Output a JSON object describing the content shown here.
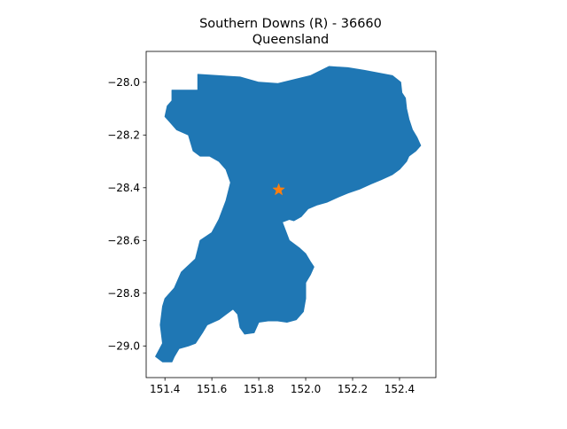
{
  "chart_data": {
    "type": "map",
    "title": "Southern Downs (R) - 36660",
    "subtitle": "Queensland",
    "xlim": [
      151.32,
      152.555
    ],
    "ylim": [
      -29.12,
      -27.883
    ],
    "xticks": [
      151.4,
      151.6,
      151.8,
      152.0,
      152.2,
      152.4
    ],
    "yticks": [
      -28.0,
      -28.2,
      -28.4,
      -28.6,
      -28.8,
      -29.0
    ],
    "xtick_labels": [
      "151.4",
      "151.6",
      "151.8",
      "152.0",
      "152.2",
      "152.4"
    ],
    "ytick_labels": [
      "−28.0",
      "−28.2",
      "−28.4",
      "−28.6",
      "−28.8",
      "−29.0"
    ],
    "region_color": "#1f77b4",
    "marker_color": "#ff7f0e",
    "marker": {
      "lon": 151.885,
      "lat": -28.408,
      "symbol": "star"
    },
    "region_boundary": [
      [
        151.54,
        -27.97
      ],
      [
        151.72,
        -27.98
      ],
      [
        151.8,
        -28.0
      ],
      [
        151.88,
        -28.005
      ],
      [
        151.95,
        -27.99
      ],
      [
        152.02,
        -27.975
      ],
      [
        152.1,
        -27.94
      ],
      [
        152.18,
        -27.945
      ],
      [
        152.25,
        -27.955
      ],
      [
        152.31,
        -27.965
      ],
      [
        152.37,
        -27.975
      ],
      [
        152.405,
        -28.0
      ],
      [
        152.41,
        -28.04
      ],
      [
        152.425,
        -28.06
      ],
      [
        152.43,
        -28.1
      ],
      [
        152.44,
        -28.14
      ],
      [
        152.455,
        -28.18
      ],
      [
        152.475,
        -28.21
      ],
      [
        152.49,
        -28.24
      ],
      [
        152.47,
        -28.26
      ],
      [
        152.44,
        -28.28
      ],
      [
        152.43,
        -28.3
      ],
      [
        152.4,
        -28.33
      ],
      [
        152.37,
        -28.35
      ],
      [
        152.32,
        -28.37
      ],
      [
        152.28,
        -28.385
      ],
      [
        152.23,
        -28.405
      ],
      [
        152.18,
        -28.42
      ],
      [
        152.14,
        -28.435
      ],
      [
        152.09,
        -28.455
      ],
      [
        152.05,
        -28.465
      ],
      [
        152.01,
        -28.48
      ],
      [
        151.98,
        -28.51
      ],
      [
        151.95,
        -28.525
      ],
      [
        151.93,
        -28.52
      ],
      [
        151.9,
        -28.53
      ],
      [
        151.93,
        -28.6
      ],
      [
        151.975,
        -28.63
      ],
      [
        152.0,
        -28.65
      ],
      [
        152.02,
        -28.68
      ],
      [
        152.035,
        -28.7
      ],
      [
        152.02,
        -28.73
      ],
      [
        152.0,
        -28.76
      ],
      [
        152.0,
        -28.82
      ],
      [
        151.99,
        -28.87
      ],
      [
        151.96,
        -28.9
      ],
      [
        151.92,
        -28.91
      ],
      [
        151.88,
        -28.905
      ],
      [
        151.84,
        -28.905
      ],
      [
        151.8,
        -28.91
      ],
      [
        151.78,
        -28.95
      ],
      [
        151.74,
        -28.955
      ],
      [
        151.72,
        -28.93
      ],
      [
        151.71,
        -28.88
      ],
      [
        151.69,
        -28.86
      ],
      [
        151.63,
        -28.9
      ],
      [
        151.58,
        -28.92
      ],
      [
        151.56,
        -28.95
      ],
      [
        151.53,
        -28.99
      ],
      [
        151.5,
        -29.0
      ],
      [
        151.46,
        -29.01
      ],
      [
        151.44,
        -29.04
      ],
      [
        151.43,
        -29.06
      ],
      [
        151.39,
        -29.06
      ],
      [
        151.36,
        -29.04
      ],
      [
        151.39,
        -28.99
      ],
      [
        151.38,
        -28.92
      ],
      [
        151.39,
        -28.85
      ],
      [
        151.4,
        -28.82
      ],
      [
        151.44,
        -28.78
      ],
      [
        151.47,
        -28.72
      ],
      [
        151.53,
        -28.67
      ],
      [
        151.55,
        -28.6
      ],
      [
        151.6,
        -28.57
      ],
      [
        151.63,
        -28.52
      ],
      [
        151.66,
        -28.45
      ],
      [
        151.68,
        -28.38
      ],
      [
        151.66,
        -28.33
      ],
      [
        151.63,
        -28.3
      ],
      [
        151.59,
        -28.28
      ],
      [
        151.55,
        -28.28
      ],
      [
        151.52,
        -28.26
      ],
      [
        151.5,
        -28.2
      ],
      [
        151.45,
        -28.18
      ],
      [
        151.42,
        -28.15
      ],
      [
        151.4,
        -28.13
      ],
      [
        151.41,
        -28.09
      ],
      [
        151.43,
        -28.07
      ],
      [
        151.43,
        -28.03
      ],
      [
        151.54,
        -28.03
      ]
    ]
  }
}
